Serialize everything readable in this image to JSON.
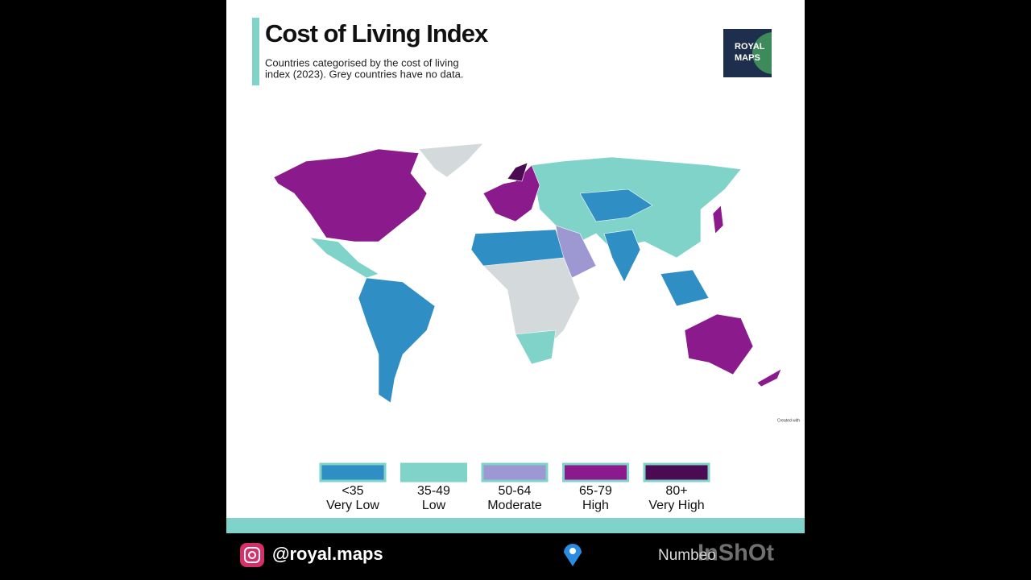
{
  "header": {
    "title": "Cost of Living Index",
    "subtitle": [
      "Countries categorised by the cost of living",
      "index (2023). Grey countries have no data."
    ]
  },
  "logo": [
    "ROYAL",
    "MAPS"
  ],
  "legend": {
    "no_data_color": "#d4d9dc",
    "items": [
      {
        "range": "<35",
        "label": "Very Low",
        "color": "#2f8fc4"
      },
      {
        "range": "35-49",
        "label": "Low",
        "color": "#7fd3c9"
      },
      {
        "range": "50-64",
        "label": "Moderate",
        "color": "#9d97d2"
      },
      {
        "range": "65-79",
        "label": "High",
        "color": "#8b1b8d"
      },
      {
        "range": "80+",
        "label": "Very High",
        "color": "#4a0b52"
      }
    ]
  },
  "credit": "Created with",
  "footer": {
    "handle": "@royal.maps",
    "source": "Numbeo",
    "watermark": "InShOt"
  }
}
